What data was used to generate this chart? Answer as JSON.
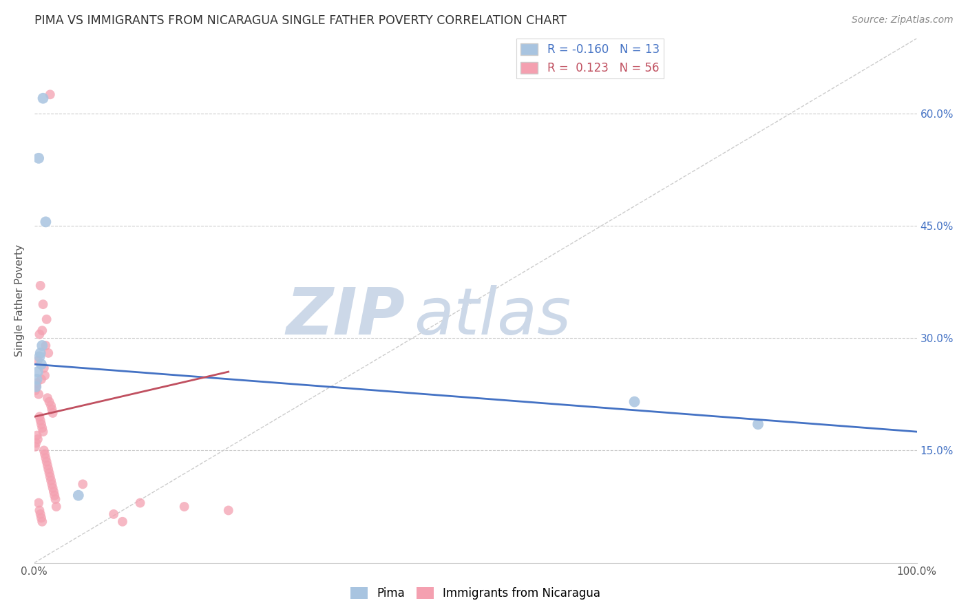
{
  "title": "PIMA VS IMMIGRANTS FROM NICARAGUA SINGLE FATHER POVERTY CORRELATION CHART",
  "source": "Source: ZipAtlas.com",
  "ylabel": "Single Father Poverty",
  "y_tick_labels_right": [
    "15.0%",
    "30.0%",
    "45.0%",
    "60.0%"
  ],
  "y_tick_positions_right": [
    0.15,
    0.3,
    0.45,
    0.6
  ],
  "legend_labels": [
    "Pima",
    "Immigrants from Nicaragua"
  ],
  "pima_R": "-0.160",
  "pima_N": "13",
  "nica_R": "0.123",
  "nica_N": "56",
  "pima_color": "#a8c4e0",
  "nica_color": "#f4a0b0",
  "pima_line_color": "#4472c4",
  "nica_line_color": "#c05060",
  "diag_line_color": "#cccccc",
  "background_color": "#ffffff",
  "watermark_zip": "ZIP",
  "watermark_atlas": "atlas",
  "watermark_color": "#ccd8e8",
  "pima_line": [
    0.0,
    0.265,
    1.0,
    0.175
  ],
  "nica_line": [
    0.0,
    0.195,
    0.22,
    0.255
  ],
  "pima_points": [
    [
      0.01,
      0.62
    ],
    [
      0.005,
      0.54
    ],
    [
      0.013,
      0.455
    ],
    [
      0.009,
      0.29
    ],
    [
      0.007,
      0.28
    ],
    [
      0.006,
      0.275
    ],
    [
      0.008,
      0.265
    ],
    [
      0.004,
      0.255
    ],
    [
      0.003,
      0.245
    ],
    [
      0.002,
      0.235
    ],
    [
      0.68,
      0.215
    ],
    [
      0.82,
      0.185
    ],
    [
      0.05,
      0.09
    ]
  ],
  "nica_points": [
    [
      0.018,
      0.625
    ],
    [
      0.007,
      0.37
    ],
    [
      0.01,
      0.345
    ],
    [
      0.014,
      0.325
    ],
    [
      0.009,
      0.31
    ],
    [
      0.006,
      0.305
    ],
    [
      0.013,
      0.29
    ],
    [
      0.016,
      0.28
    ],
    [
      0.004,
      0.27
    ],
    [
      0.011,
      0.26
    ],
    [
      0.012,
      0.25
    ],
    [
      0.008,
      0.245
    ],
    [
      0.003,
      0.24
    ],
    [
      0.002,
      0.235
    ],
    [
      0.001,
      0.23
    ],
    [
      0.005,
      0.225
    ],
    [
      0.015,
      0.22
    ],
    [
      0.017,
      0.215
    ],
    [
      0.019,
      0.21
    ],
    [
      0.02,
      0.205
    ],
    [
      0.021,
      0.2
    ],
    [
      0.006,
      0.195
    ],
    [
      0.007,
      0.19
    ],
    [
      0.008,
      0.185
    ],
    [
      0.009,
      0.18
    ],
    [
      0.01,
      0.175
    ],
    [
      0.003,
      0.17
    ],
    [
      0.004,
      0.165
    ],
    [
      0.002,
      0.16
    ],
    [
      0.001,
      0.155
    ],
    [
      0.011,
      0.15
    ],
    [
      0.012,
      0.145
    ],
    [
      0.013,
      0.14
    ],
    [
      0.014,
      0.135
    ],
    [
      0.015,
      0.13
    ],
    [
      0.016,
      0.125
    ],
    [
      0.017,
      0.12
    ],
    [
      0.018,
      0.115
    ],
    [
      0.019,
      0.11
    ],
    [
      0.02,
      0.105
    ],
    [
      0.021,
      0.1
    ],
    [
      0.022,
      0.095
    ],
    [
      0.023,
      0.09
    ],
    [
      0.024,
      0.085
    ],
    [
      0.005,
      0.08
    ],
    [
      0.025,
      0.075
    ],
    [
      0.006,
      0.07
    ],
    [
      0.007,
      0.065
    ],
    [
      0.008,
      0.06
    ],
    [
      0.009,
      0.055
    ],
    [
      0.055,
      0.105
    ],
    [
      0.12,
      0.08
    ],
    [
      0.17,
      0.075
    ],
    [
      0.22,
      0.07
    ],
    [
      0.09,
      0.065
    ],
    [
      0.1,
      0.055
    ]
  ]
}
